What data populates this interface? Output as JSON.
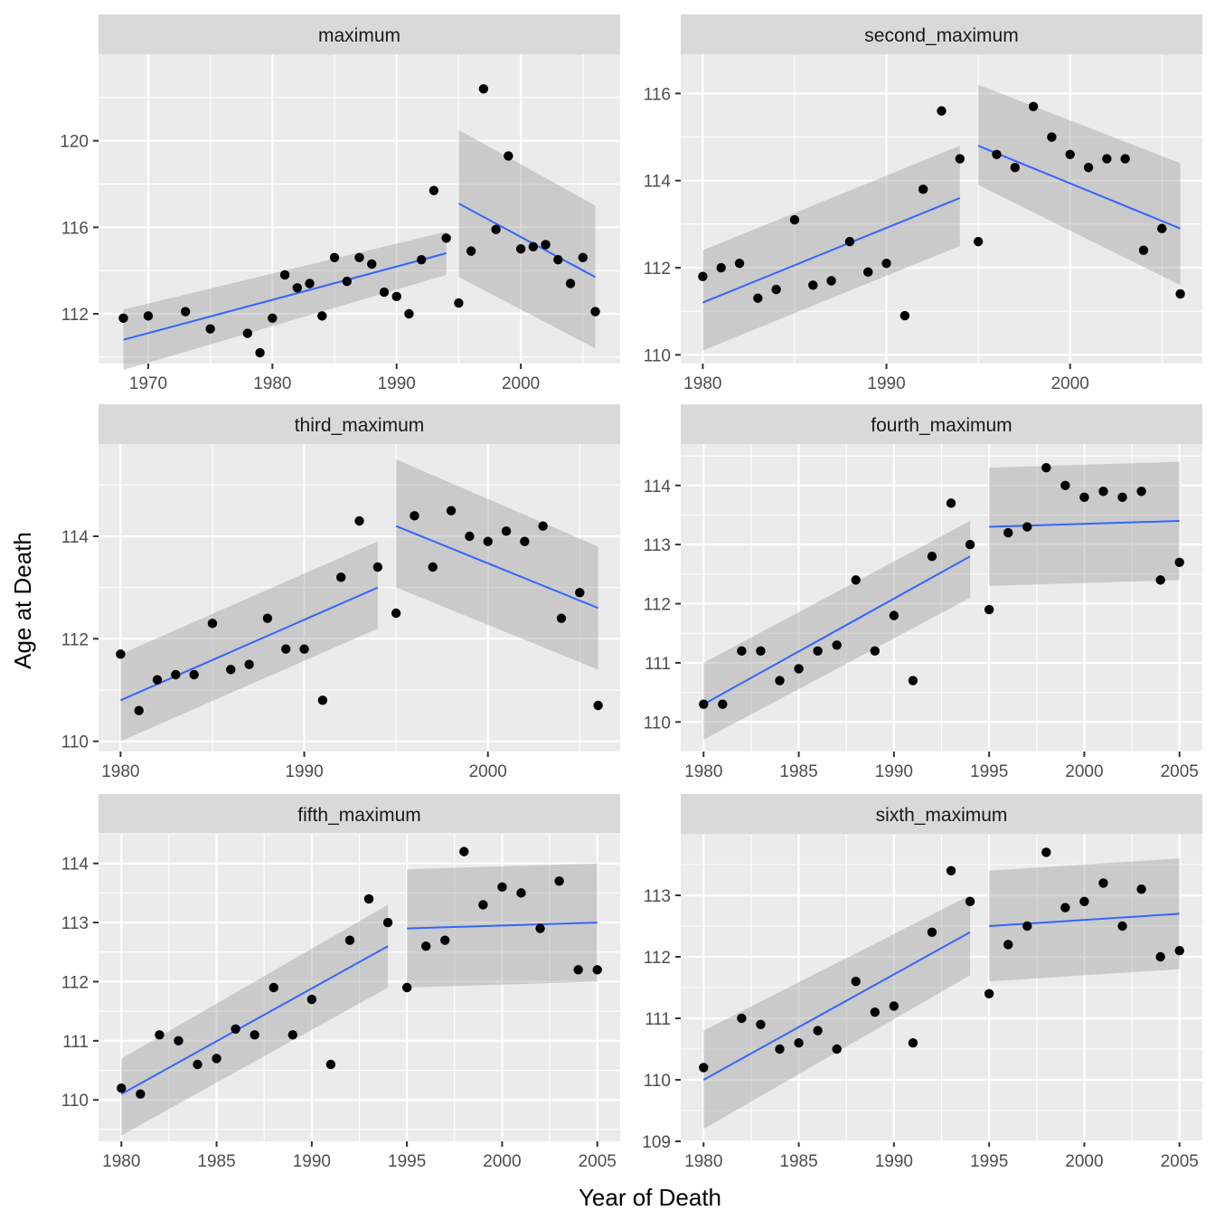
{
  "figure": {
    "xlabel": "Year of Death",
    "ylabel": "Age at Death"
  },
  "colors": {
    "panel_bg": "#EBEBEB",
    "strip_bg": "#D9D9D9",
    "grid": "#FFFFFF",
    "point": "#000000",
    "fit_line": "#3366FF",
    "ribbon": "#999999",
    "axis_text": "#4D4D4D"
  },
  "chart_data": [
    {
      "type": "scatter",
      "title": "maximum",
      "xlim": [
        1966,
        2008
      ],
      "ylim": [
        109.7,
        124.0
      ],
      "xticks": [
        1970,
        1980,
        1990,
        2000
      ],
      "yticks": [
        112,
        116,
        120
      ],
      "points": [
        [
          1968,
          111.8
        ],
        [
          1970,
          111.9
        ],
        [
          1973,
          112.1
        ],
        [
          1975,
          111.3
        ],
        [
          1978,
          111.1
        ],
        [
          1979,
          110.2
        ],
        [
          1980,
          111.8
        ],
        [
          1981,
          113.8
        ],
        [
          1982,
          113.2
        ],
        [
          1983,
          113.4
        ],
        [
          1984,
          111.9
        ],
        [
          1985,
          114.6
        ],
        [
          1986,
          113.5
        ],
        [
          1987,
          114.6
        ],
        [
          1988,
          114.3
        ],
        [
          1989,
          113.0
        ],
        [
          1990,
          112.8
        ],
        [
          1991,
          112.0
        ],
        [
          1992,
          114.5
        ],
        [
          1993,
          117.7
        ],
        [
          1994,
          115.5
        ],
        [
          1995,
          112.5
        ],
        [
          1996,
          114.9
        ],
        [
          1997,
          122.4
        ],
        [
          1998,
          115.9
        ],
        [
          1999,
          119.3
        ],
        [
          2000,
          115.0
        ],
        [
          2001,
          115.1
        ],
        [
          2002,
          115.2
        ],
        [
          2003,
          114.5
        ],
        [
          2004,
          113.4
        ],
        [
          2005,
          114.6
        ],
        [
          2006,
          112.1
        ]
      ],
      "fits": [
        {
          "x": [
            1968,
            1994
          ],
          "y": [
            110.8,
            114.8
          ],
          "ci_lower": [
            109.4,
            113.8
          ],
          "ci_upper": [
            112.2,
            115.8
          ]
        },
        {
          "x": [
            1995,
            2006
          ],
          "y": [
            117.1,
            113.7
          ],
          "ci_lower": [
            113.7,
            110.4
          ],
          "ci_upper": [
            120.5,
            117.0
          ]
        }
      ]
    },
    {
      "type": "scatter",
      "title": "second_maximum",
      "xlim": [
        1978.8,
        2007.2
      ],
      "ylim": [
        109.8,
        116.9
      ],
      "xticks": [
        1980,
        1990,
        2000
      ],
      "yticks": [
        110,
        112,
        114,
        116
      ],
      "points": [
        [
          1980,
          111.8
        ],
        [
          1981,
          112.0
        ],
        [
          1982,
          112.1
        ],
        [
          1983,
          111.3
        ],
        [
          1984,
          111.5
        ],
        [
          1985,
          113.1
        ],
        [
          1986,
          111.6
        ],
        [
          1987,
          111.7
        ],
        [
          1988,
          112.6
        ],
        [
          1989,
          111.9
        ],
        [
          1990,
          112.1
        ],
        [
          1991,
          110.9
        ],
        [
          1992,
          113.8
        ],
        [
          1993,
          115.6
        ],
        [
          1994,
          114.5
        ],
        [
          1995,
          112.6
        ],
        [
          1996,
          114.6
        ],
        [
          1997,
          114.3
        ],
        [
          1998,
          115.7
        ],
        [
          1999,
          115.0
        ],
        [
          2000,
          114.6
        ],
        [
          2001,
          114.3
        ],
        [
          2002,
          114.5
        ],
        [
          2003,
          114.5
        ],
        [
          2004,
          112.4
        ],
        [
          2005,
          112.9
        ],
        [
          2006,
          111.4
        ]
      ],
      "fits": [
        {
          "x": [
            1980,
            1994
          ],
          "y": [
            111.2,
            113.6
          ],
          "ci_lower": [
            110.1,
            112.5
          ],
          "ci_upper": [
            112.4,
            114.8
          ]
        },
        {
          "x": [
            1995,
            2006
          ],
          "y": [
            114.8,
            112.9
          ],
          "ci_lower": [
            113.9,
            111.6
          ],
          "ci_upper": [
            116.2,
            114.4
          ]
        }
      ]
    },
    {
      "type": "scatter",
      "title": "third_maximum",
      "xlim": [
        1978.8,
        2007.2
      ],
      "ylim": [
        109.8,
        115.8
      ],
      "xticks": [
        1980,
        1990,
        2000
      ],
      "yticks": [
        110,
        112,
        114
      ],
      "points": [
        [
          1980,
          111.7
        ],
        [
          1981,
          110.6
        ],
        [
          1982,
          111.2
        ],
        [
          1983,
          111.3
        ],
        [
          1984,
          111.3
        ],
        [
          1985,
          112.3
        ],
        [
          1986,
          111.4
        ],
        [
          1987,
          111.5
        ],
        [
          1988,
          112.4
        ],
        [
          1989,
          111.8
        ],
        [
          1990,
          111.8
        ],
        [
          1991,
          110.8
        ],
        [
          1992,
          113.2
        ],
        [
          1993,
          114.3
        ],
        [
          1994,
          113.4
        ],
        [
          1995,
          112.5
        ],
        [
          1996,
          114.4
        ],
        [
          1997,
          113.4
        ],
        [
          1998,
          114.5
        ],
        [
          1999,
          114.0
        ],
        [
          2000,
          113.9
        ],
        [
          2001,
          114.1
        ],
        [
          2002,
          113.9
        ],
        [
          2003,
          114.2
        ],
        [
          2004,
          112.4
        ],
        [
          2005,
          112.9
        ],
        [
          2006,
          110.7
        ]
      ],
      "fits": [
        {
          "x": [
            1980,
            1994
          ],
          "y": [
            110.8,
            113.0
          ],
          "ci_lower": [
            110.0,
            112.2
          ],
          "ci_upper": [
            111.7,
            113.9
          ]
        },
        {
          "x": [
            1995,
            2006
          ],
          "y": [
            114.2,
            112.6
          ],
          "ci_lower": [
            113.0,
            111.4
          ],
          "ci_upper": [
            115.5,
            113.8
          ]
        }
      ]
    },
    {
      "type": "scatter",
      "title": "fourth_maximum",
      "xlim": [
        1978.8,
        2006.2
      ],
      "ylim": [
        109.5,
        114.7
      ],
      "xticks": [
        1980,
        1985,
        1990,
        1995,
        2000,
        2005
      ],
      "yticks": [
        110,
        111,
        112,
        113,
        114
      ],
      "points": [
        [
          1980,
          110.3
        ],
        [
          1981,
          110.3
        ],
        [
          1982,
          111.2
        ],
        [
          1983,
          111.2
        ],
        [
          1984,
          110.7
        ],
        [
          1985,
          110.9
        ],
        [
          1986,
          111.2
        ],
        [
          1987,
          111.3
        ],
        [
          1988,
          112.4
        ],
        [
          1989,
          111.2
        ],
        [
          1990,
          111.8
        ],
        [
          1991,
          110.7
        ],
        [
          1992,
          112.8
        ],
        [
          1993,
          113.7
        ],
        [
          1994,
          113.0
        ],
        [
          1995,
          111.9
        ],
        [
          1996,
          113.2
        ],
        [
          1997,
          113.3
        ],
        [
          1998,
          114.3
        ],
        [
          1999,
          114.0
        ],
        [
          2000,
          113.8
        ],
        [
          2001,
          113.9
        ],
        [
          2002,
          113.8
        ],
        [
          2003,
          113.9
        ],
        [
          2004,
          112.4
        ],
        [
          2005,
          112.7
        ]
      ],
      "fits": [
        {
          "x": [
            1980,
            1994
          ],
          "y": [
            110.3,
            112.8
          ],
          "ci_lower": [
            109.7,
            112.1
          ],
          "ci_upper": [
            111.0,
            113.4
          ]
        },
        {
          "x": [
            1995,
            2005
          ],
          "y": [
            113.3,
            113.4
          ],
          "ci_lower": [
            112.3,
            112.4
          ],
          "ci_upper": [
            114.3,
            114.4
          ]
        }
      ]
    },
    {
      "type": "scatter",
      "title": "fifth_maximum",
      "xlim": [
        1978.8,
        2006.2
      ],
      "ylim": [
        109.3,
        114.5
      ],
      "xticks": [
        1980,
        1985,
        1990,
        1995,
        2000,
        2005
      ],
      "yticks": [
        110,
        111,
        112,
        113,
        114
      ],
      "points": [
        [
          1980,
          110.2
        ],
        [
          1981,
          110.1
        ],
        [
          1982,
          111.1
        ],
        [
          1983,
          111.0
        ],
        [
          1984,
          110.6
        ],
        [
          1985,
          110.7
        ],
        [
          1986,
          111.2
        ],
        [
          1987,
          111.1
        ],
        [
          1988,
          111.9
        ],
        [
          1989,
          111.1
        ],
        [
          1990,
          111.7
        ],
        [
          1991,
          110.6
        ],
        [
          1992,
          112.7
        ],
        [
          1993,
          113.4
        ],
        [
          1994,
          113.0
        ],
        [
          1995,
          111.9
        ],
        [
          1996,
          112.6
        ],
        [
          1997,
          112.7
        ],
        [
          1998,
          114.2
        ],
        [
          1999,
          113.3
        ],
        [
          2000,
          113.6
        ],
        [
          2001,
          113.5
        ],
        [
          2002,
          112.9
        ],
        [
          2003,
          113.7
        ],
        [
          2004,
          112.2
        ],
        [
          2005,
          112.2
        ]
      ],
      "fits": [
        {
          "x": [
            1980,
            1994
          ],
          "y": [
            110.1,
            112.6
          ],
          "ci_lower": [
            109.4,
            111.9
          ],
          "ci_upper": [
            110.7,
            113.3
          ]
        },
        {
          "x": [
            1995,
            2005
          ],
          "y": [
            112.9,
            113.0
          ],
          "ci_lower": [
            111.9,
            112.0
          ],
          "ci_upper": [
            113.9,
            114.0
          ]
        }
      ]
    },
    {
      "type": "scatter",
      "title": "sixth_maximum",
      "xlim": [
        1978.8,
        2006.2
      ],
      "ylim": [
        109.0,
        114.0
      ],
      "xticks": [
        1980,
        1985,
        1990,
        1995,
        2000,
        2005
      ],
      "yticks": [
        109,
        110,
        111,
        112,
        113
      ],
      "points": [
        [
          1980,
          110.2
        ],
        [
          1982,
          111.0
        ],
        [
          1983,
          110.9
        ],
        [
          1984,
          110.5
        ],
        [
          1985,
          110.6
        ],
        [
          1986,
          110.8
        ],
        [
          1987,
          110.5
        ],
        [
          1988,
          111.6
        ],
        [
          1989,
          111.1
        ],
        [
          1990,
          111.2
        ],
        [
          1991,
          110.6
        ],
        [
          1992,
          112.4
        ],
        [
          1993,
          113.4
        ],
        [
          1994,
          112.9
        ],
        [
          1995,
          111.4
        ],
        [
          1996,
          112.2
        ],
        [
          1997,
          112.5
        ],
        [
          1998,
          113.7
        ],
        [
          1999,
          112.8
        ],
        [
          2000,
          112.9
        ],
        [
          2001,
          113.2
        ],
        [
          2002,
          112.5
        ],
        [
          2003,
          113.1
        ],
        [
          2004,
          112.0
        ],
        [
          2005,
          112.1
        ]
      ],
      "fits": [
        {
          "x": [
            1980,
            1994
          ],
          "y": [
            110.0,
            112.4
          ],
          "ci_lower": [
            109.2,
            111.7
          ],
          "ci_upper": [
            110.8,
            113.0
          ]
        },
        {
          "x": [
            1995,
            2005
          ],
          "y": [
            112.5,
            112.7
          ],
          "ci_lower": [
            111.6,
            111.8
          ],
          "ci_upper": [
            113.4,
            113.6
          ]
        }
      ]
    }
  ]
}
